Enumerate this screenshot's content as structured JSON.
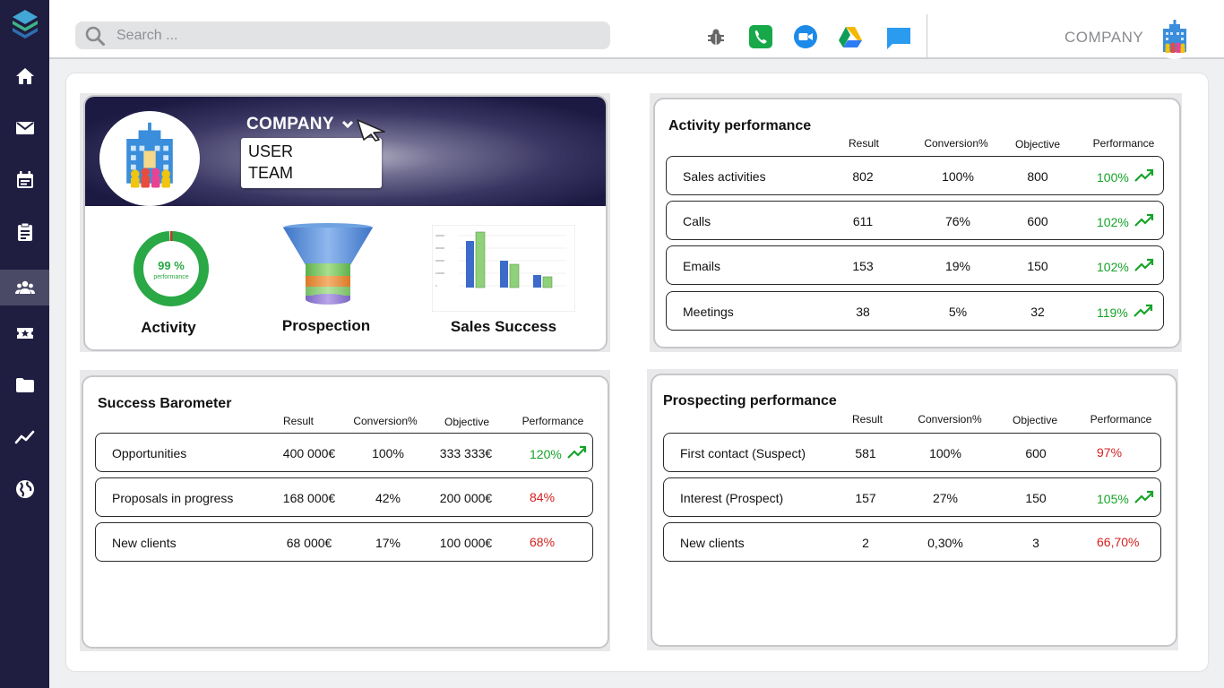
{
  "sidebar": {
    "items": [
      {
        "icon": "home-icon",
        "active": false
      },
      {
        "icon": "mail-icon",
        "active": false
      },
      {
        "icon": "calendar-icon",
        "active": false
      },
      {
        "icon": "clipboard-icon",
        "active": false
      },
      {
        "icon": "team-icon",
        "active": true
      },
      {
        "icon": "ticket-icon",
        "active": false
      },
      {
        "icon": "folder-icon",
        "active": false
      },
      {
        "icon": "trend-chart-icon",
        "active": false
      },
      {
        "icon": "globe-icon",
        "active": false
      }
    ]
  },
  "topbar": {
    "search_placeholder": "Search ...",
    "icons": [
      "bug-icon",
      "phone-icon",
      "video-call-icon",
      "drive-icon",
      "chat-icon"
    ],
    "company_label": "COMPANY"
  },
  "hero": {
    "selector_label": "COMPANY",
    "dropdown_options": [
      "USER",
      "TEAM"
    ],
    "items": [
      {
        "label": "Activity",
        "gauge_value": "99 %",
        "gauge_caption": "performance",
        "gauge_fraction": 0.99
      },
      {
        "label": "Prospection"
      },
      {
        "label": "Sales Success"
      }
    ]
  },
  "activity_performance": {
    "title": "Activity performance",
    "columns": [
      "Result",
      "Conversion%",
      "Objective",
      "Performance"
    ],
    "rows": [
      {
        "name": "Sales activities",
        "result": "802",
        "conversion": "100%",
        "objective": "800",
        "performance": "100%",
        "status": "up"
      },
      {
        "name": "Calls",
        "result": "611",
        "conversion": "76%",
        "objective": "600",
        "performance": "102%",
        "status": "up"
      },
      {
        "name": "Emails",
        "result": "153",
        "conversion": "19%",
        "objective": "150",
        "performance": "102%",
        "status": "up"
      },
      {
        "name": "Meetings",
        "result": "38",
        "conversion": "5%",
        "objective": "32",
        "performance": "119%",
        "status": "up"
      }
    ]
  },
  "success_barometer": {
    "title": "Success Barometer",
    "columns": [
      "Result",
      "Conversion%",
      "Objective",
      "Performance"
    ],
    "rows": [
      {
        "name": "Opportunities",
        "result": "400 000€",
        "conversion": "100%",
        "objective": "333 333€",
        "performance": "120%",
        "status": "up"
      },
      {
        "name": "Proposals in progress",
        "result": "168 000€",
        "conversion": "42%",
        "objective": "200 000€",
        "performance": "84%",
        "status": "down"
      },
      {
        "name": "New clients",
        "result": "68 000€",
        "conversion": "17%",
        "objective": "100 000€",
        "performance": "68%",
        "status": "down"
      }
    ]
  },
  "prospecting_performance": {
    "title": "Prospecting performance",
    "columns": [
      "Result",
      "Conversion%",
      "Objective",
      "Performance"
    ],
    "rows": [
      {
        "name": "First contact (Suspect)",
        "result": "581",
        "conversion": "100%",
        "objective": "600",
        "performance": "97%",
        "status": "down"
      },
      {
        "name": "Interest (Prospect)",
        "result": "157",
        "conversion": "27%",
        "objective": "150",
        "performance": "105%",
        "status": "up"
      },
      {
        "name": "New clients",
        "result": "2",
        "conversion": "0,30%",
        "objective": "3",
        "performance": "66,70%",
        "status": "down"
      }
    ]
  },
  "colors": {
    "sidebar": "#1f1d40",
    "positive": "#16a329",
    "negative": "#d42020",
    "gauge": "#2aa845"
  }
}
